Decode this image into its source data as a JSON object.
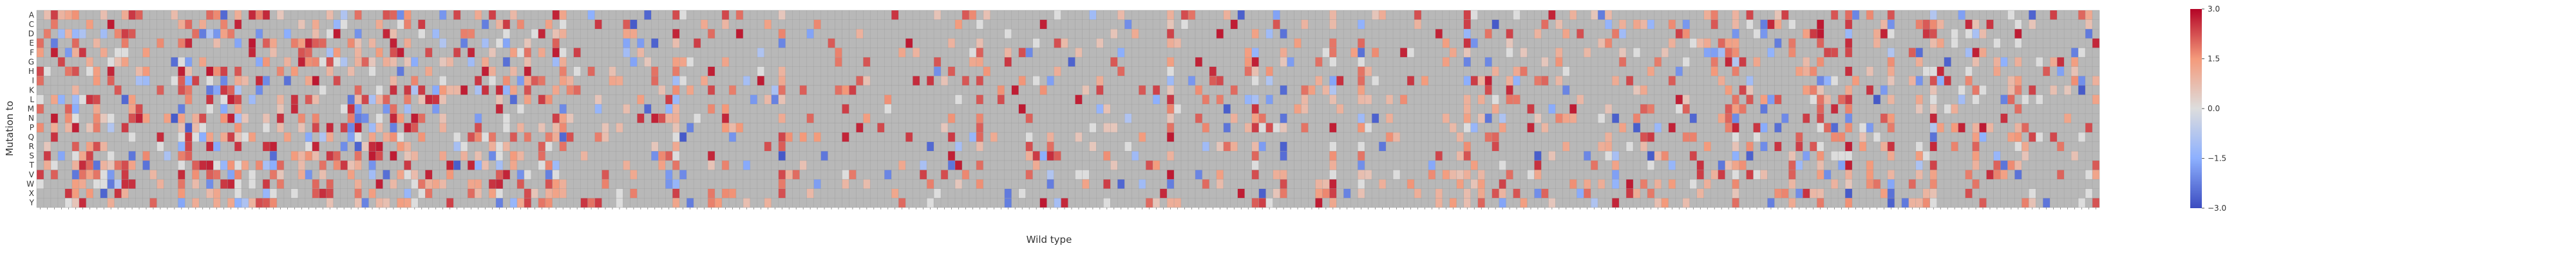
{
  "chart_data": {
    "type": "heatmap",
    "title": "",
    "xlabel": "Wild type",
    "ylabel": "Mutation to",
    "rows": [
      "A",
      "C",
      "D",
      "E",
      "F",
      "G",
      "H",
      "I",
      "K",
      "L",
      "M",
      "N",
      "P",
      "Q",
      "R",
      "S",
      "T",
      "V",
      "W",
      "X",
      "Y"
    ],
    "columns_count": 292,
    "colorbar": {
      "min": -3.0,
      "max": 3.0,
      "ticks": [
        "3.0",
        "1.5",
        "0.0",
        "−1.5",
        "−3.0"
      ],
      "colormap": "coolwarm"
    },
    "missing_color": "#b8b8b8",
    "zero_color": "#dddddd",
    "grid": true,
    "hot_columns": [
      5,
      20,
      28,
      45,
      62,
      74,
      90,
      105,
      133,
      160,
      172,
      176,
      183,
      187,
      202,
      240,
      252,
      256,
      262,
      268,
      274,
      280
    ]
  }
}
